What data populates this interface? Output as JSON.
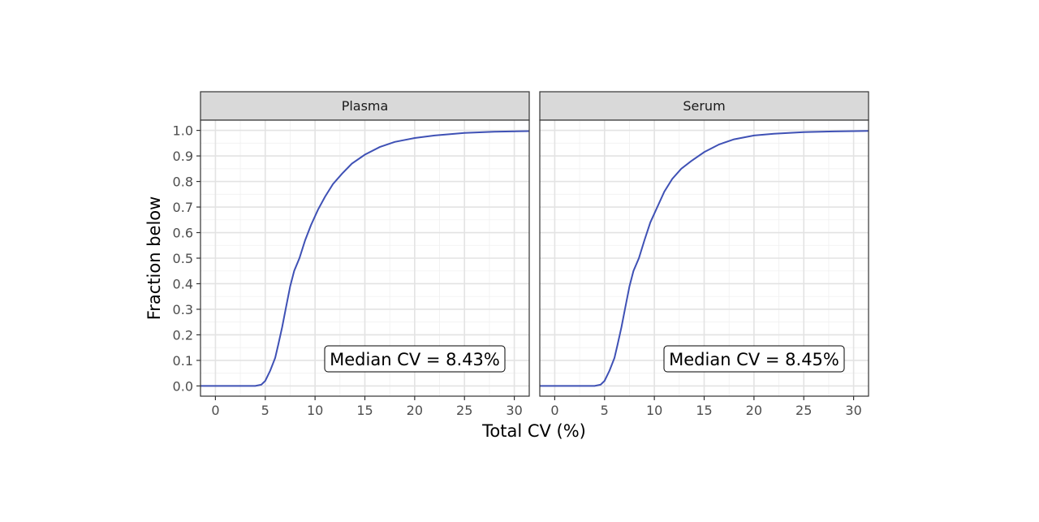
{
  "chart_data": {
    "type": "line",
    "title": "",
    "xlabel": "Total CV (%)",
    "ylabel": "Fraction below",
    "xlim": [
      -1.5,
      31.5
    ],
    "ylim": [
      -0.04,
      1.04
    ],
    "x_ticks": [
      0,
      5,
      10,
      15,
      20,
      25,
      30
    ],
    "x_tick_labels": [
      "0",
      "5",
      "10",
      "15",
      "20",
      "25",
      "30"
    ],
    "y_ticks": [
      0.0,
      0.1,
      0.2,
      0.3,
      0.4,
      0.5,
      0.6,
      0.7,
      0.8,
      0.9,
      1.0
    ],
    "y_tick_labels": [
      "0.0",
      "0.1",
      "0.2",
      "0.3",
      "0.4",
      "0.5",
      "0.6",
      "0.7",
      "0.8",
      "0.9",
      "1.0"
    ],
    "grid": true,
    "legend": "none",
    "line_color": "#3F51B5",
    "panels": [
      {
        "strip_label": "Plasma",
        "annotation": "Median CV = 8.43%",
        "x": [
          -1.5,
          4.0,
          4.6,
          5.0,
          5.5,
          6.0,
          6.3,
          6.7,
          7.1,
          7.5,
          7.9,
          8.43,
          9.0,
          9.6,
          10.3,
          11.0,
          11.8,
          12.7,
          13.7,
          15.0,
          16.5,
          18.0,
          20.0,
          22.0,
          25.0,
          28.0,
          31.5
        ],
        "y": [
          0.0,
          0.0,
          0.005,
          0.02,
          0.06,
          0.11,
          0.16,
          0.23,
          0.31,
          0.39,
          0.45,
          0.5,
          0.57,
          0.63,
          0.69,
          0.74,
          0.79,
          0.83,
          0.87,
          0.905,
          0.935,
          0.955,
          0.97,
          0.98,
          0.99,
          0.995,
          0.997
        ]
      },
      {
        "strip_label": "Serum",
        "annotation": "Median CV = 8.45%",
        "x": [
          -1.5,
          4.0,
          4.6,
          5.0,
          5.5,
          6.0,
          6.3,
          6.7,
          7.1,
          7.5,
          7.9,
          8.45,
          9.0,
          9.6,
          10.3,
          11.0,
          11.8,
          12.7,
          13.7,
          15.0,
          16.5,
          18.0,
          20.0,
          22.0,
          25.0,
          28.0,
          31.5
        ],
        "y": [
          0.0,
          0.0,
          0.005,
          0.02,
          0.06,
          0.11,
          0.16,
          0.23,
          0.31,
          0.39,
          0.45,
          0.5,
          0.57,
          0.64,
          0.7,
          0.76,
          0.81,
          0.85,
          0.88,
          0.915,
          0.945,
          0.965,
          0.98,
          0.987,
          0.993,
          0.996,
          0.998
        ]
      }
    ]
  }
}
